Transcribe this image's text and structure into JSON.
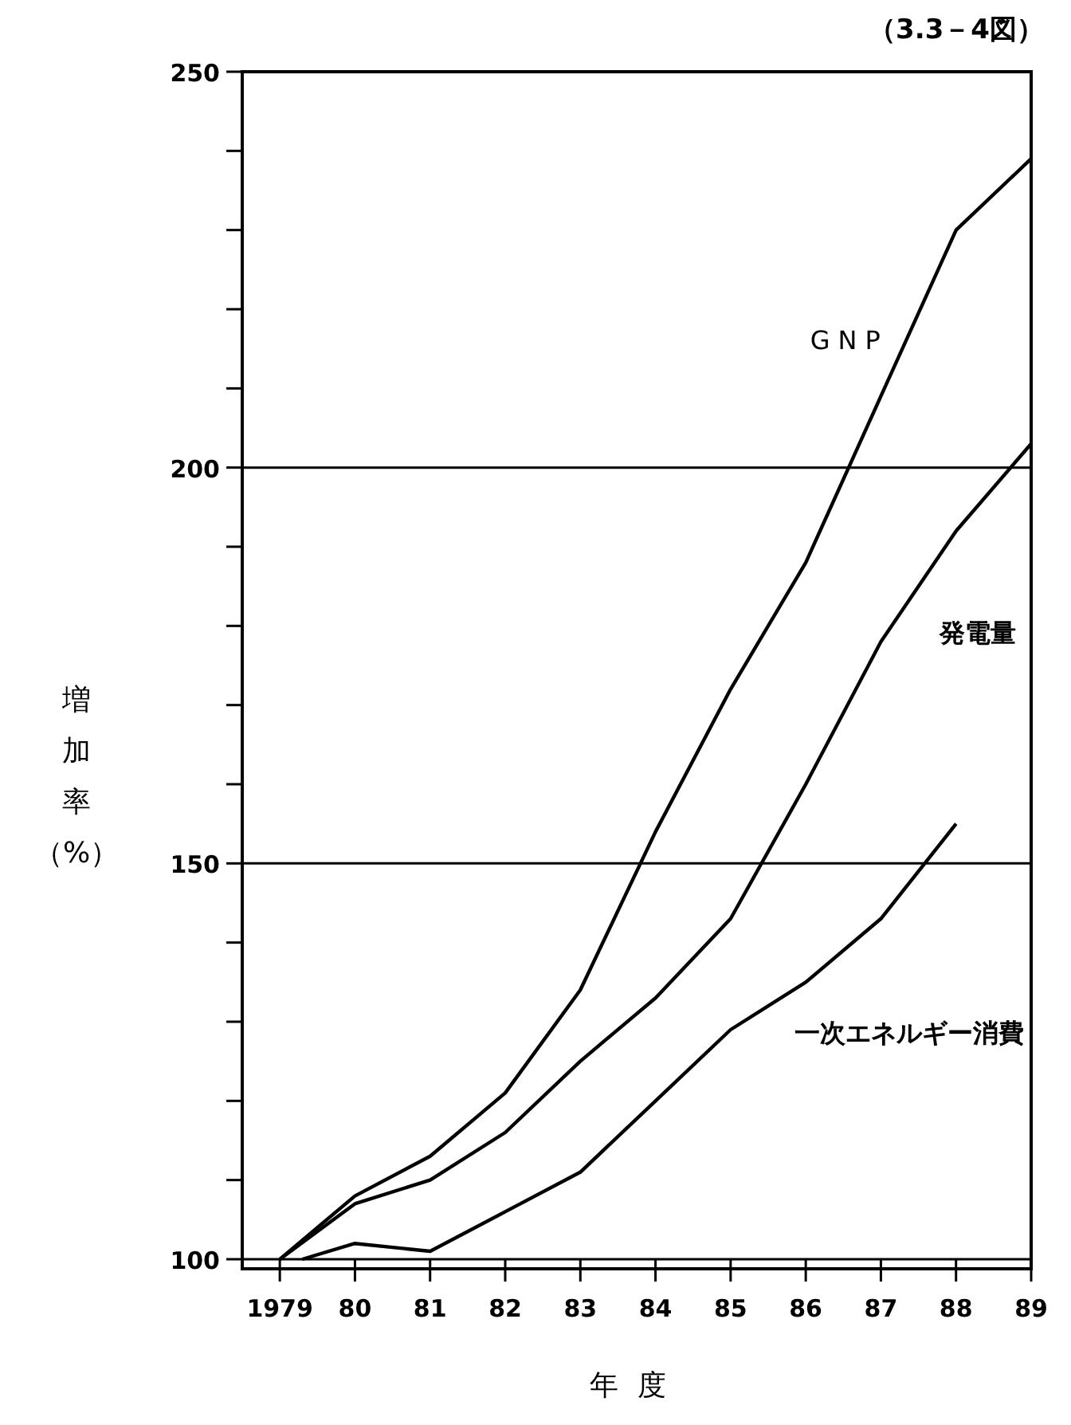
{
  "chart_data": {
    "type": "line",
    "title": "（3.3－4図）",
    "xlabel": "年度",
    "ylabel": "増加率（%）",
    "xlim": [
      1978.5,
      1989
    ],
    "ylim": [
      100,
      250
    ],
    "xticks": [
      1979,
      {
        "value": 1980,
        "label": "80"
      },
      {
        "value": 1981,
        "label": "81"
      },
      {
        "value": 1982,
        "label": "82"
      },
      {
        "value": 1983,
        "label": "83"
      },
      {
        "value": 1984,
        "label": "84"
      },
      {
        "value": 1985,
        "label": "85"
      },
      {
        "value": 1986,
        "label": "86"
      },
      {
        "value": 1987,
        "label": "87"
      },
      {
        "value": 1988,
        "label": "88"
      },
      {
        "value": 1989,
        "label": "89"
      }
    ],
    "yticks": [
      100,
      {
        "value": 110,
        "label": null
      },
      {
        "value": 120,
        "label": null
      },
      {
        "value": 130,
        "label": null
      },
      {
        "value": 140,
        "label": null
      },
      150,
      {
        "value": 160,
        "label": null
      },
      {
        "value": 170,
        "label": null
      },
      {
        "value": 180,
        "label": null
      },
      {
        "value": 190,
        "label": null
      },
      200,
      {
        "value": 210,
        "label": null
      },
      {
        "value": 220,
        "label": null
      },
      {
        "value": 230,
        "label": null
      },
      {
        "value": 240,
        "label": null
      },
      250
    ],
    "ref_lines": [
      {
        "axis": "y",
        "value": 150
      },
      {
        "axis": "y",
        "value": 200
      }
    ],
    "line_style": "solid",
    "marker": "none",
    "series": [
      {
        "name": "GNP",
        "color": "#000000",
        "x": [
          1979,
          1980,
          1981,
          1982,
          1983,
          1984,
          1985,
          1986,
          1987,
          1988,
          1989
        ],
        "values": [
          100,
          108,
          113,
          121,
          134,
          154,
          172,
          188,
          209,
          230,
          239
        ]
      },
      {
        "name": "発電量",
        "color": "#000000",
        "x": [
          1979,
          1980,
          1981,
          1982,
          1983,
          1984,
          1985,
          1986,
          1987,
          1988,
          1989
        ],
        "values": [
          100,
          107,
          110,
          116,
          125,
          133,
          143,
          160,
          178,
          192,
          203
        ]
      },
      {
        "name": "一次エネルギー消費",
        "color": "#000000",
        "x": [
          1979.3,
          1980,
          1981,
          1982,
          1983,
          1984,
          1985,
          1986,
          1987,
          1988
        ],
        "values": [
          100,
          102,
          101,
          106,
          111,
          120,
          129,
          135,
          143,
          155
        ]
      }
    ]
  }
}
